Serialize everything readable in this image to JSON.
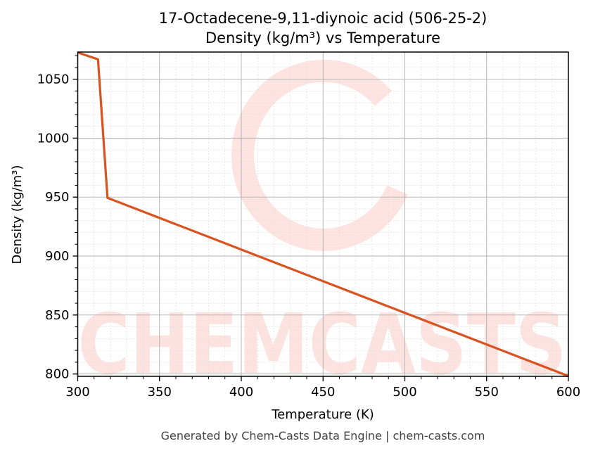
{
  "chart_data": {
    "type": "line",
    "title": "17-Octadecene-9,11-diynoic acid (506-25-2)",
    "subtitle": "Density (kg/m³) vs Temperature",
    "xlabel": "Temperature (K)",
    "ylabel": "Density (kg/m³)",
    "xlim": [
      300,
      600
    ],
    "ylim": [
      798,
      1073
    ],
    "xticks": [
      300,
      350,
      400,
      450,
      500,
      550,
      600
    ],
    "yticks": [
      800,
      850,
      900,
      950,
      1000,
      1050
    ],
    "grid": true,
    "series": [
      {
        "color": "#d95320",
        "x": [
          300,
          312.4,
          318.2,
          600
        ],
        "y": [
          1072.6,
          1066.8,
          949.4,
          798.2
        ]
      }
    ],
    "watermark": "CHEMCASTS",
    "footer": "Generated by Chem-Casts Data Engine | chem-casts.com"
  }
}
